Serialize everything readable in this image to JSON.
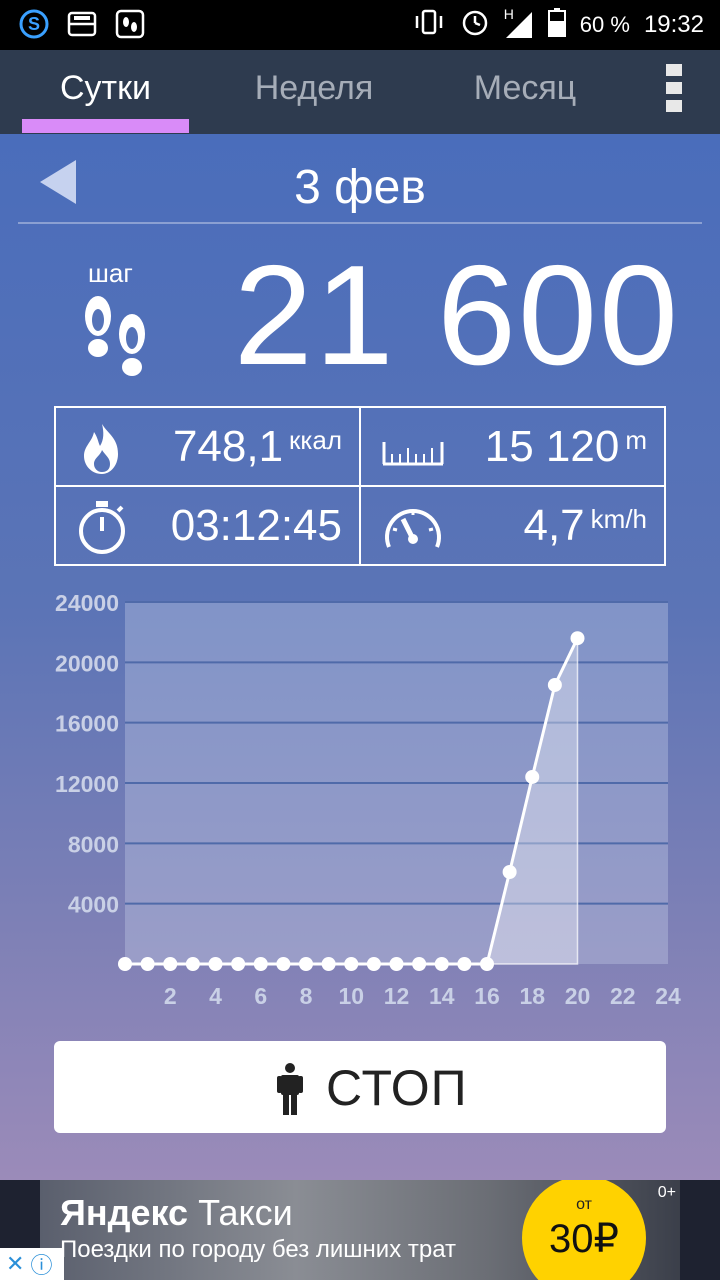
{
  "status_bar": {
    "battery": "60 %",
    "time": "19:32",
    "network": "H"
  },
  "tabs": [
    {
      "label": "Сутки",
      "active": true
    },
    {
      "label": "Неделя",
      "active": false
    },
    {
      "label": "Месяц",
      "active": false
    }
  ],
  "date": {
    "label": "3 фев"
  },
  "steps": {
    "word": "шаг",
    "value": "21 600"
  },
  "stats": {
    "calories": {
      "value": "748,1",
      "unit": "ккал",
      "icon": "fire-icon"
    },
    "distance": {
      "value": "15 120",
      "unit": "m",
      "icon": "ruler-icon"
    },
    "duration": {
      "value": "03:12:45",
      "icon": "stopwatch-icon"
    },
    "speed": {
      "value": "4,7",
      "unit": "km/h",
      "icon": "speedometer-icon"
    }
  },
  "chart_data": {
    "type": "line",
    "x": [
      0,
      1,
      2,
      3,
      4,
      5,
      6,
      7,
      8,
      9,
      10,
      11,
      12,
      13,
      14,
      15,
      16,
      17,
      18,
      19,
      20
    ],
    "values": [
      0,
      0,
      0,
      0,
      0,
      0,
      0,
      0,
      0,
      0,
      0,
      0,
      0,
      0,
      0,
      0,
      0,
      6100,
      12400,
      18500,
      21600
    ],
    "xticks": [
      2,
      4,
      6,
      8,
      10,
      12,
      14,
      16,
      18,
      20,
      22,
      24
    ],
    "yticks": [
      4000,
      8000,
      12000,
      16000,
      20000,
      24000
    ],
    "xlim": [
      0,
      24
    ],
    "ylim": [
      0,
      24000
    ],
    "grid": true,
    "colors": {
      "line": "#ffffff",
      "plot_bg": "#9aa5cc"
    }
  },
  "stop_button": {
    "label": "СТОП",
    "icon": "person-icon"
  },
  "ad": {
    "brand_bold": "Яндекс",
    "brand_light": " Такси",
    "tagline": "Поездки по городу без лишних трат",
    "price_prefix": "от",
    "price": "30₽",
    "age": "0+"
  },
  "colors": {
    "accent_underline": "#d98bf8",
    "tabbar_bg": "#2e3b4f",
    "main_top": "#4a6dbb",
    "main_bottom": "#9b8bb9"
  }
}
